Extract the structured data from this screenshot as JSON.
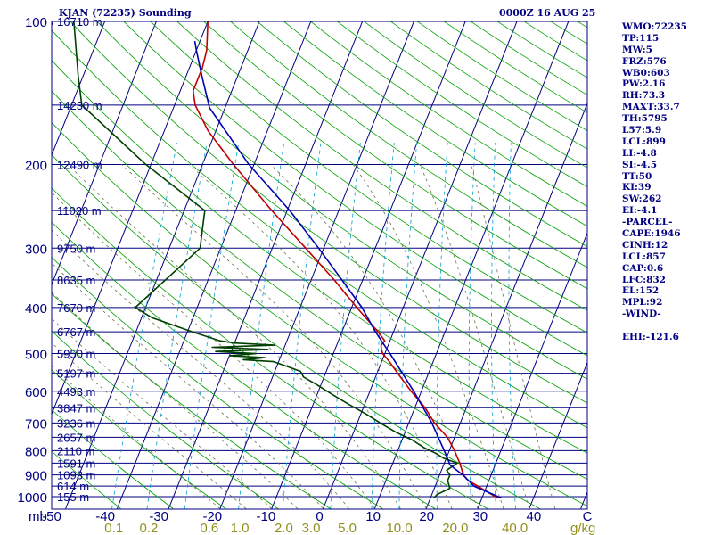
{
  "header": {
    "station": "KJAN (72235) Sounding",
    "time": "0000Z 16 AUG 25"
  },
  "indices": [
    "WMO:72235",
    "TP:115",
    "MW:5",
    "FRZ:576",
    "WB0:603",
    "PW:2.16",
    "RH:73.3",
    "MAXT:33.7",
    "TH:5795",
    "L57:5.9",
    "LCL:899",
    "LI:-4.8",
    "SI:-4.5",
    "TT:50",
    "KI:39",
    "SW:262",
    "EI:-4.1",
    "-PARCEL-",
    "CAPE:1946",
    "CINH:12",
    "LCL:857",
    "CAP:0.6",
    "LFC:832",
    "EL:152",
    "MPL:92",
    "-WIND-",
    "",
    "EHI:-121.6"
  ],
  "colors": {
    "frame": "#000080",
    "isobar": "#000080",
    "isotherm": "#000080",
    "dry_adiabat": "#00a000",
    "moist_adiabat": "#70704a",
    "mixing_ratio": "#00a0d0",
    "temperature": "#c00000",
    "dewpoint": "#004000",
    "parcel": "#0000b0",
    "height_label": "#000080",
    "mr_label": "#909020"
  },
  "chart_data": {
    "type": "line",
    "title": "KJAN (72235) Sounding",
    "xlabel": "",
    "ylabel": "mb",
    "pressure_axis": {
      "scale": "log",
      "range_mb": [
        1000,
        100
      ],
      "ticks": [
        100,
        200,
        300,
        400,
        500,
        600,
        700,
        800,
        900,
        1000
      ]
    },
    "temperature_axis": {
      "range_c": [
        -50,
        50
      ],
      "ticks": [
        -50,
        -40,
        -30,
        -20,
        -10,
        0,
        10,
        20,
        30,
        40
      ],
      "tick_labels": [
        "-50",
        "-40",
        "-30",
        "-20",
        "-10",
        "0",
        "10",
        "20",
        "30",
        "40",
        "C"
      ]
    },
    "mixing_ratio_labels": [
      {
        "g_kg": 0.1,
        "label": "0.1"
      },
      {
        "g_kg": 0.2,
        "label": "0.2"
      },
      {
        "g_kg": 0.6,
        "label": "0.6"
      },
      {
        "g_kg": 1.0,
        "label": "1.0"
      },
      {
        "g_kg": 2.0,
        "label": "2.0"
      },
      {
        "g_kg": 3.0,
        "label": "3.0"
      },
      {
        "g_kg": 5.0,
        "label": "5.0"
      },
      {
        "g_kg": 10.0,
        "label": "10.0"
      },
      {
        "g_kg": 20.0,
        "label": "20.0"
      },
      {
        "g_kg": 40.0,
        "label": "40.0"
      }
    ],
    "mixing_ratio_unit": "g/kg",
    "mixing_ratio_lines_g_kg": [
      0.1,
      0.2,
      0.4,
      1.0,
      2.0,
      4.0,
      7.0,
      10.0,
      16.0,
      24.0,
      32.0,
      40.0
    ],
    "height_labels": [
      {
        "p": 100,
        "label": "16710 m"
      },
      {
        "p": 150,
        "label": "14230 m"
      },
      {
        "p": 200,
        "label": "12490 m"
      },
      {
        "p": 250,
        "label": "11020 m"
      },
      {
        "p": 300,
        "label": "9750 m"
      },
      {
        "p": 350,
        "label": "8635 m"
      },
      {
        "p": 400,
        "label": "7670 m"
      },
      {
        "p": 450,
        "label": "6767 m"
      },
      {
        "p": 500,
        "label": "5950 m"
      },
      {
        "p": 550,
        "label": "5197 m"
      },
      {
        "p": 600,
        "label": "4493 m"
      },
      {
        "p": 650,
        "label": "3847 m"
      },
      {
        "p": 700,
        "label": "3236 m"
      },
      {
        "p": 750,
        "label": "2657 m"
      },
      {
        "p": 800,
        "label": "2110 m"
      },
      {
        "p": 850,
        "label": "1591 m"
      },
      {
        "p": 900,
        "label": "1093 m"
      },
      {
        "p": 950,
        "label": "614 m"
      },
      {
        "p": 1000,
        "label": "155 m"
      }
    ],
    "series": [
      {
        "key": "temperature",
        "points": [
          [
            1006,
            33.7
          ],
          [
            1000,
            32.5
          ],
          [
            925,
            26.0
          ],
          [
            900,
            24.6
          ],
          [
            850,
            23.0
          ],
          [
            800,
            21.0
          ],
          [
            750,
            18.6
          ],
          [
            700,
            15.0
          ],
          [
            650,
            12.0
          ],
          [
            600,
            8.0
          ],
          [
            550,
            4.0
          ],
          [
            520,
            1.5
          ],
          [
            500,
            -0.4
          ],
          [
            490,
            -1.0
          ],
          [
            480,
            -1.4
          ],
          [
            470,
            -1.0
          ],
          [
            450,
            -3.0
          ],
          [
            400,
            -9.0
          ],
          [
            350,
            -15.5
          ],
          [
            300,
            -23.5
          ],
          [
            250,
            -33.0
          ],
          [
            200,
            -44.0
          ],
          [
            170,
            -51.5
          ],
          [
            150,
            -56.0
          ],
          [
            140,
            -57.5
          ],
          [
            125,
            -57.5
          ],
          [
            115,
            -58.0
          ],
          [
            100,
            -60.0
          ]
        ]
      },
      {
        "key": "dewpoint",
        "points": [
          [
            1006,
            20.7
          ],
          [
            990,
            21.0
          ],
          [
            960,
            23.0
          ],
          [
            925,
            22.0
          ],
          [
            900,
            22.0
          ],
          [
            880,
            21.0
          ],
          [
            850,
            22.5
          ],
          [
            830,
            19.5
          ],
          [
            810,
            17.5
          ],
          [
            790,
            15.0
          ],
          [
            760,
            12.0
          ],
          [
            730,
            8.0
          ],
          [
            700,
            4.5
          ],
          [
            670,
            1.0
          ],
          [
            640,
            -3.0
          ],
          [
            610,
            -7.0
          ],
          [
            580,
            -11.0
          ],
          [
            560,
            -14.0
          ],
          [
            545,
            -15.0
          ],
          [
            530,
            -18.5
          ],
          [
            520,
            -21.0
          ],
          [
            515,
            -27.0
          ],
          [
            510,
            -23.0
          ],
          [
            505,
            -30.0
          ],
          [
            500,
            -25.0
          ],
          [
            495,
            -33.0
          ],
          [
            490,
            -23.0
          ],
          [
            485,
            -34.0
          ],
          [
            480,
            -22.0
          ],
          [
            475,
            -30.0
          ],
          [
            470,
            -33.0
          ],
          [
            450,
            -39.0
          ],
          [
            420,
            -48.0
          ],
          [
            400,
            -52.0
          ],
          [
            300,
            -44.0
          ],
          [
            250,
            -46.0
          ],
          [
            200,
            -61.0
          ],
          [
            150,
            -78.0
          ],
          [
            130,
            -81.0
          ],
          [
            100,
            -86.0
          ]
        ]
      },
      {
        "key": "parcel",
        "points": [
          [
            1006,
            33.7
          ],
          [
            950,
            27.5
          ],
          [
            900,
            24.5
          ],
          [
            857,
            21.2
          ],
          [
            850,
            21.0
          ],
          [
            800,
            19.0
          ],
          [
            700,
            14.5
          ],
          [
            600,
            8.5
          ],
          [
            500,
            1.0
          ],
          [
            450,
            -3.5
          ],
          [
            400,
            -8.0
          ],
          [
            350,
            -14.0
          ],
          [
            300,
            -21.0
          ],
          [
            250,
            -29.5
          ],
          [
            200,
            -41.0
          ],
          [
            152,
            -53.0
          ],
          [
            130,
            -57.0
          ],
          [
            115,
            -60.0
          ],
          [
            110,
            -61.0
          ]
        ]
      }
    ]
  }
}
